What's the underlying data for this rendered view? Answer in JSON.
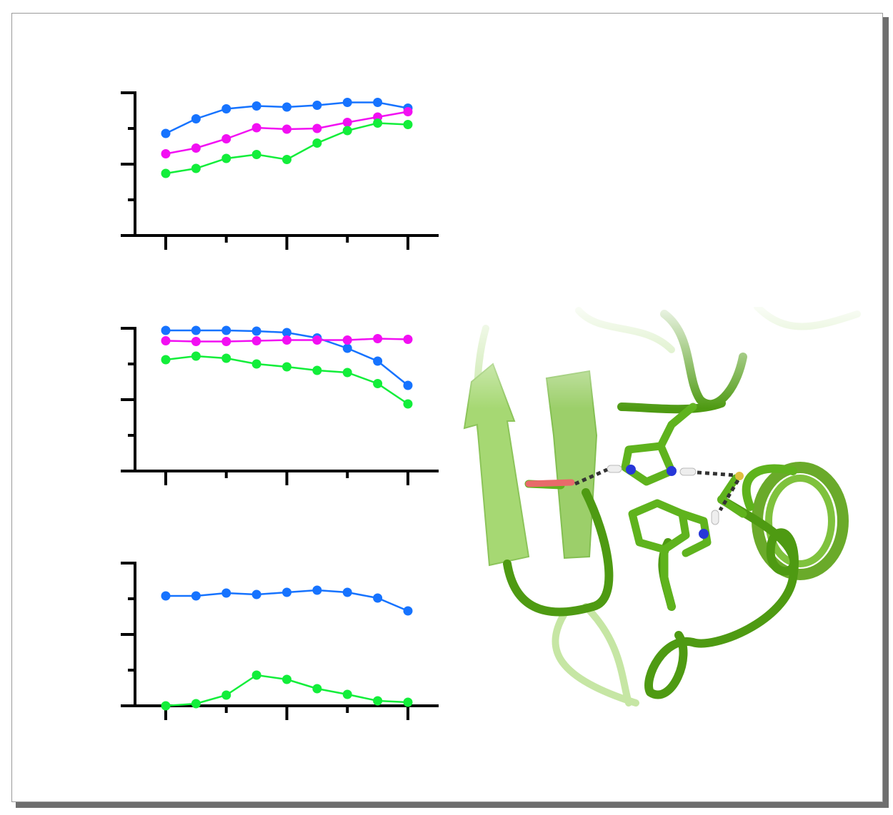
{
  "colors": {
    "blue": "#1673ff",
    "magenta": "#f20ff2",
    "green": "#12ee3a",
    "axis": "#000000",
    "protein_light": "#a6d873",
    "protein_dark": "#5fb31d",
    "nitrogen": "#2737d8",
    "oxygen": "#e86a6a",
    "hydrogen": "#eeeeee",
    "sulfur": "#e0c040"
  },
  "chart_data": [
    {
      "type": "line",
      "x": [
        1,
        2,
        3,
        4,
        5,
        6,
        7,
        8,
        9
      ],
      "ylim": [
        0,
        4
      ],
      "xlim": [
        1,
        9
      ],
      "y_ticks": [
        0,
        1,
        2,
        3,
        4
      ],
      "x_ticks": [
        1,
        3,
        5,
        7,
        9
      ],
      "grid": false,
      "series": [
        {
          "color": "blue",
          "values": [
            2.86,
            3.27,
            3.55,
            3.63,
            3.6,
            3.65,
            3.73,
            3.73,
            3.57
          ]
        },
        {
          "color": "magenta",
          "values": [
            2.29,
            2.45,
            2.71,
            3.02,
            2.98,
            3.0,
            3.17,
            3.32,
            3.47
          ]
        },
        {
          "color": "green",
          "values": [
            1.74,
            1.88,
            2.16,
            2.27,
            2.13,
            2.59,
            2.94,
            3.15,
            3.11
          ]
        }
      ]
    },
    {
      "type": "line",
      "x": [
        1,
        2,
        3,
        4,
        5,
        6,
        7,
        8,
        9
      ],
      "ylim": [
        0,
        4
      ],
      "xlim": [
        1,
        9
      ],
      "y_ticks": [
        0,
        1,
        2,
        3,
        4
      ],
      "x_ticks": [
        1,
        3,
        5,
        7,
        9
      ],
      "grid": false,
      "series": [
        {
          "color": "blue",
          "values": [
            3.94,
            3.94,
            3.94,
            3.92,
            3.88,
            3.73,
            3.44,
            3.08,
            2.4
          ]
        },
        {
          "color": "magenta",
          "values": [
            3.65,
            3.63,
            3.63,
            3.65,
            3.67,
            3.67,
            3.67,
            3.71,
            3.69
          ]
        },
        {
          "color": "green",
          "values": [
            3.12,
            3.22,
            3.16,
            3.0,
            2.92,
            2.82,
            2.76,
            2.45,
            1.88
          ]
        }
      ]
    },
    {
      "type": "line",
      "x": [
        1,
        2,
        3,
        4,
        5,
        6,
        7,
        8,
        9
      ],
      "ylim": [
        0,
        4
      ],
      "xlim": [
        1,
        9
      ],
      "y_ticks": [
        0,
        1,
        2,
        3,
        4
      ],
      "x_ticks": [
        1,
        3,
        5,
        7,
        9
      ],
      "grid": false,
      "series": [
        {
          "color": "blue",
          "values": [
            3.08,
            3.08,
            3.16,
            3.12,
            3.18,
            3.24,
            3.18,
            3.02,
            2.66
          ]
        },
        {
          "color": "green",
          "values": [
            0.0,
            0.06,
            0.3,
            0.86,
            0.74,
            0.48,
            0.32,
            0.14,
            0.1
          ]
        }
      ]
    }
  ],
  "image": {
    "content": "protein-ribbon-structure"
  }
}
